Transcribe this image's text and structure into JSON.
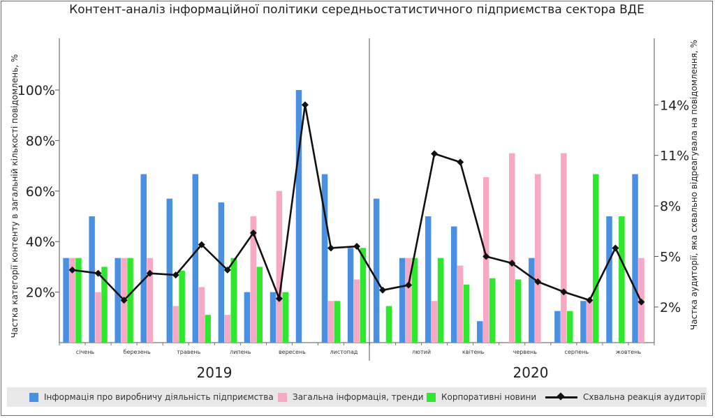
{
  "title": "Контент-аналіз інформаційної політики середньостатистичного підприємства сектора ВДЕ",
  "chart_data": {
    "type": "bar",
    "ylabel_left": "Частка категорії контенту в загальній кількості повідомлень, %",
    "ylabel_right": "Частка аудиторії, яка схвально відреагувала на повідомлення, %",
    "left_ticks": [
      "20%",
      "40%",
      "60%",
      "80%",
      "100%"
    ],
    "left_tick_values": [
      20,
      40,
      60,
      80,
      100
    ],
    "right_ticks": [
      "2%",
      "5%",
      "8%",
      "11%",
      "14%"
    ],
    "right_tick_values": [
      2,
      5,
      8,
      11,
      14
    ],
    "ylim_left": [
      0,
      100
    ],
    "years": [
      "2019",
      "2020"
    ],
    "month_labels": [
      "січень",
      "березень",
      "травень",
      "липень",
      "вересень",
      "листопад",
      "лютий",
      "квітень",
      "червень",
      "серпень",
      "жовтень"
    ],
    "month_label_positions": [
      1,
      3,
      5,
      7,
      9,
      11,
      14,
      16,
      18,
      20,
      22
    ],
    "num_periods": 23,
    "series": [
      {
        "name": "Інформація про виробничу діяльність підприємства",
        "color": "#4a90e2",
        "values": [
          33.5,
          50,
          33.5,
          66.7,
          57,
          66.7,
          55.5,
          20,
          20,
          100,
          66.7,
          37.5,
          57,
          33.5,
          50,
          46,
          8.5,
          0,
          33.5,
          12.5,
          16.5,
          50,
          66.7
        ]
      },
      {
        "name": "Загальна інформація, тренди",
        "color": "#f7a8c4",
        "values": [
          33.5,
          20,
          33.5,
          33.5,
          14.5,
          22,
          11,
          50,
          60,
          0,
          16.5,
          25,
          0,
          33.5,
          16.5,
          30.5,
          65.5,
          75,
          66.7,
          75,
          16.5,
          0,
          33.5
        ]
      },
      {
        "name": "Корпоративні новини",
        "color": "#2ee82e",
        "values": [
          33.5,
          30,
          33.5,
          0,
          28.5,
          11,
          33.5,
          30,
          20,
          0,
          16.5,
          37.5,
          14.5,
          33.5,
          33.5,
          23,
          25.5,
          25,
          0,
          12.5,
          66.7,
          50,
          0
        ]
      },
      {
        "name": "Схвальна реакція аудиторії",
        "color": "#111111",
        "values": [
          4.2,
          4.0,
          2.4,
          4.0,
          3.9,
          5.7,
          4.2,
          6.4,
          2.5,
          14.0,
          5.5,
          5.6,
          3.0,
          3.3,
          11.1,
          10.6,
          5.0,
          4.6,
          3.5,
          2.9,
          2.4,
          5.5,
          2.3
        ]
      }
    ]
  }
}
